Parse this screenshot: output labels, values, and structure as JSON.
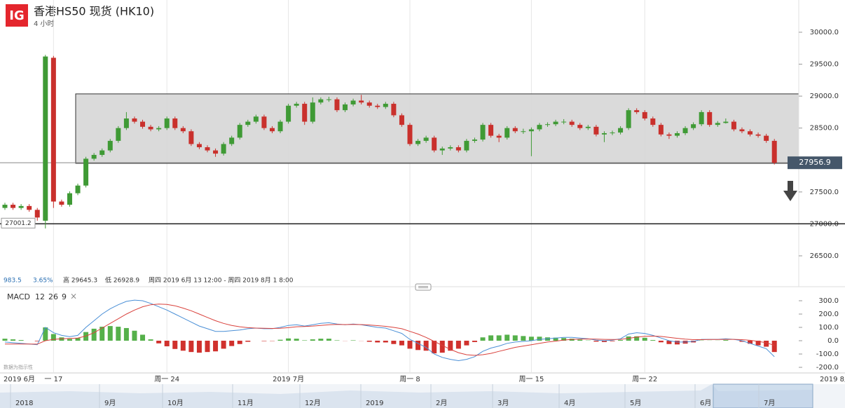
{
  "header": {
    "logo": "IG",
    "title": "香港HS50 现货 (HK10)",
    "interval": "4 小时"
  },
  "stats": [
    "983.5",
    "3.65%",
    "高 29645.3",
    "低 26928.9",
    "周四 2019 6月 13 12:00 - 周四 2019 8月 1 8:00"
  ],
  "chart_data": [
    {
      "type": "candlestick",
      "categories": [
        "2019 6月",
        null,
        null,
        null,
        null,
        null,
        "一 17",
        null,
        null,
        null,
        null,
        null,
        null,
        null,
        null,
        null,
        null,
        null,
        null,
        null,
        "周一 24",
        null,
        null,
        null,
        null,
        null,
        null,
        null,
        null,
        null,
        null,
        null,
        null,
        null,
        null,
        "2019 7月",
        null,
        null,
        null,
        null,
        null,
        null,
        null,
        null,
        null,
        null,
        null,
        null,
        null,
        null,
        "周一 8",
        null,
        null,
        null,
        null,
        null,
        null,
        null,
        null,
        null,
        null,
        null,
        null,
        null,
        null,
        "周一 15",
        null,
        null,
        null,
        null,
        null,
        null,
        null,
        null,
        null,
        null,
        null,
        null,
        null,
        "周一 22",
        null,
        null,
        null,
        null,
        null,
        null,
        null,
        null,
        null,
        null,
        null,
        null,
        null,
        null,
        null,
        null
      ],
      "x_overflow_label": "2019 8月",
      "open": [
        27250,
        27300,
        27250,
        27280,
        27220,
        27050,
        29600,
        27350,
        27300,
        27480,
        27600,
        28020,
        28080,
        28150,
        28300,
        28500,
        28650,
        28600,
        28520,
        28480,
        28500,
        28650,
        28500,
        28450,
        28250,
        28200,
        28150,
        28100,
        28250,
        28350,
        28550,
        28600,
        28680,
        28500,
        28450,
        28600,
        28850,
        28880,
        28600,
        28900,
        28950,
        28950,
        28780,
        28870,
        28930,
        28900,
        28850,
        28830,
        28880,
        28700,
        28550,
        28250,
        28300,
        28350,
        28150,
        28180,
        28200,
        28150,
        28300,
        28320,
        28550,
        28380,
        28350,
        28500,
        28450,
        28450,
        28480,
        28550,
        28560,
        28600,
        28600,
        28550,
        28500,
        28520,
        28400,
        28420,
        28430,
        28500,
        28780,
        28750,
        28650,
        28550,
        28400,
        28380,
        28420,
        28500,
        28560,
        28750,
        28550,
        28580,
        28600,
        28480,
        28450,
        28400,
        28380,
        28300
      ],
      "high": [
        27330,
        27330,
        27310,
        27310,
        27250,
        29645.3,
        29630,
        27380,
        27510,
        27630,
        28050,
        28110,
        28180,
        28330,
        28530,
        28750,
        28680,
        28630,
        28550,
        28530,
        28680,
        28680,
        28530,
        28480,
        28280,
        28230,
        28180,
        28280,
        28380,
        28580,
        28630,
        28710,
        28710,
        28530,
        28630,
        28880,
        28910,
        28910,
        28980,
        28980,
        28990,
        28980,
        28900,
        28960,
        29020,
        28930,
        28880,
        28910,
        28910,
        28730,
        28580,
        28330,
        28380,
        28380,
        28210,
        28230,
        28230,
        28330,
        28350,
        28580,
        28580,
        28410,
        28530,
        28530,
        28490,
        28510,
        28580,
        28590,
        28630,
        28640,
        28630,
        28580,
        28550,
        28550,
        28450,
        28460,
        28530,
        28810,
        28810,
        28780,
        28680,
        28580,
        28430,
        28450,
        28530,
        28590,
        28780,
        28780,
        28610,
        28650,
        28630,
        28510,
        28480,
        28430,
        28410,
        28330
      ],
      "low": [
        27220,
        27220,
        27220,
        27190,
        27050,
        26928.9,
        27250,
        27270,
        27270,
        27450,
        27570,
        27990,
        28050,
        28120,
        28270,
        28470,
        28570,
        28490,
        28450,
        28450,
        28470,
        28470,
        28420,
        28220,
        28170,
        28120,
        28050,
        28070,
        28220,
        28320,
        28520,
        28570,
        28470,
        28420,
        28420,
        28570,
        28820,
        28550,
        28570,
        28870,
        28910,
        28750,
        28750,
        28840,
        28870,
        28820,
        28800,
        28800,
        28670,
        28520,
        28220,
        28220,
        28270,
        28120,
        28080,
        28150,
        28120,
        28120,
        28270,
        28290,
        28350,
        28280,
        28320,
        28420,
        28410,
        28060,
        28450,
        28520,
        28530,
        28560,
        28520,
        28470,
        28470,
        28370,
        28280,
        28390,
        28400,
        28470,
        28720,
        28620,
        28520,
        28370,
        28330,
        28350,
        28390,
        28470,
        28530,
        28520,
        28520,
        28570,
        28450,
        28420,
        28370,
        28350,
        28270,
        27930
      ],
      "close": [
        27300,
        27250,
        27280,
        27220,
        27100,
        29620,
        27350,
        27300,
        27480,
        27600,
        28020,
        28080,
        28150,
        28300,
        28500,
        28650,
        28600,
        28520,
        28480,
        28500,
        28650,
        28500,
        28450,
        28250,
        28200,
        28150,
        28100,
        28250,
        28350,
        28550,
        28600,
        28680,
        28500,
        28450,
        28600,
        28850,
        28880,
        28600,
        28900,
        28950,
        28950,
        28780,
        28870,
        28930,
        28900,
        28850,
        28830,
        28880,
        28700,
        28550,
        28250,
        28300,
        28350,
        28150,
        28180,
        28200,
        28150,
        28300,
        28320,
        28550,
        28380,
        28350,
        28500,
        28450,
        28450,
        28480,
        28550,
        28560,
        28600,
        28600,
        28550,
        28500,
        28520,
        28400,
        28420,
        28430,
        28500,
        28780,
        28750,
        28650,
        28550,
        28400,
        28380,
        28420,
        28500,
        28560,
        28750,
        28550,
        28580,
        28600,
        28480,
        28450,
        28400,
        28380,
        28300,
        27956.9
      ],
      "up_color": "#3f9a35",
      "down_color": "#c9302c",
      "last_price": 27956.9,
      "reference_line": 27001.2,
      "range_box": [
        27948,
        29035
      ],
      "ylim": [
        26200,
        30500
      ],
      "yticks": [
        {
          "value": 26500,
          "label": "26500.0"
        },
        {
          "value": 27000,
          "label": "27000.0"
        },
        {
          "value": 27500,
          "label": "27500.0"
        },
        {
          "value": 28500,
          "label": "28500.0"
        },
        {
          "value": 29000,
          "label": "29000.0"
        },
        {
          "value": 29500,
          "label": "29500.0"
        },
        {
          "value": 30000,
          "label": "30000.0"
        }
      ],
      "grid": "x"
    },
    {
      "type": "macd",
      "title": "MACD",
      "params": [
        12,
        26,
        9
      ],
      "close_icon": "×",
      "note": "数据为指示性",
      "series": [
        {
          "color": "#4a8fd6",
          "values": [
            -10,
            -15,
            -20,
            -25,
            -30,
            100,
            60,
            40,
            30,
            40,
            100,
            150,
            200,
            240,
            270,
            295,
            305,
            300,
            280,
            255,
            230,
            200,
            170,
            140,
            110,
            90,
            70,
            70,
            75,
            80,
            90,
            95,
            90,
            90,
            100,
            115,
            120,
            110,
            120,
            130,
            135,
            125,
            120,
            125,
            120,
            110,
            100,
            95,
            75,
            55,
            10,
            -20,
            -50,
            -100,
            -125,
            -140,
            -150,
            -140,
            -120,
            -80,
            -55,
            -40,
            -20,
            -10,
            -5,
            0,
            10,
            15,
            20,
            25,
            25,
            20,
            15,
            5,
            0,
            5,
            15,
            50,
            60,
            55,
            40,
            20,
            0,
            -10,
            -10,
            -5,
            10,
            10,
            10,
            15,
            10,
            0,
            -20,
            -40,
            -60,
            -120
          ]
        },
        {
          "color": "#d9413c",
          "values": [
            -25,
            -25,
            -25,
            -25,
            -26,
            0,
            10,
            15,
            17,
            20,
            35,
            60,
            95,
            130,
            165,
            200,
            230,
            255,
            270,
            275,
            272,
            262,
            245,
            225,
            200,
            175,
            150,
            130,
            115,
            105,
            98,
            95,
            93,
            92,
            93,
            98,
            105,
            107,
            110,
            115,
            120,
            122,
            121,
            122,
            121,
            118,
            113,
            108,
            100,
            90,
            70,
            50,
            25,
            -5,
            -35,
            -65,
            -90,
            -105,
            -110,
            -105,
            -95,
            -80,
            -65,
            -50,
            -40,
            -30,
            -20,
            -10,
            -3,
            5,
            10,
            12,
            13,
            12,
            10,
            9,
            10,
            18,
            27,
            33,
            35,
            32,
            25,
            18,
            12,
            8,
            8,
            9,
            9,
            10,
            10,
            8,
            3,
            -5,
            -15,
            -35
          ]
        }
      ],
      "histogram": {
        "up_color": "#55b04a",
        "down_color": "#d0312d",
        "values": [
          15,
          10,
          5,
          0,
          -4,
          100,
          50,
          25,
          13,
          20,
          65,
          90,
          105,
          110,
          105,
          95,
          75,
          45,
          10,
          -20,
          -42,
          -62,
          -75,
          -85,
          -90,
          -85,
          -80,
          -60,
          -40,
          -25,
          -8,
          0,
          -3,
          -2,
          7,
          17,
          15,
          3,
          10,
          15,
          15,
          3,
          -1,
          3,
          -1,
          -8,
          -13,
          -13,
          -25,
          -35,
          -60,
          -70,
          -75,
          -95,
          -90,
          -75,
          -60,
          -35,
          -10,
          25,
          40,
          40,
          45,
          40,
          35,
          30,
          30,
          25,
          23,
          20,
          15,
          8,
          2,
          -7,
          -10,
          -4,
          5,
          32,
          33,
          22,
          5,
          -12,
          -25,
          -28,
          -22,
          -13,
          2,
          1,
          1,
          5,
          0,
          -8,
          -23,
          -35,
          -45,
          -85
        ]
      },
      "ylim": [
        -230,
        400
      ],
      "yticks": [
        {
          "value": 300,
          "label": "300.0"
        },
        {
          "value": 200,
          "label": "200.0"
        },
        {
          "value": 100,
          "label": "100.0"
        },
        {
          "value": 0,
          "label": "0.0"
        },
        {
          "value": -100,
          "label": "-100.0"
        },
        {
          "value": -200,
          "label": "-200.0"
        }
      ]
    }
  ],
  "navigator": {
    "labels": [
      "2018",
      "9月",
      "10月",
      "11月",
      "12月",
      "2019",
      "2月",
      "3月",
      "4月",
      "5月",
      "6月",
      "7月"
    ]
  }
}
